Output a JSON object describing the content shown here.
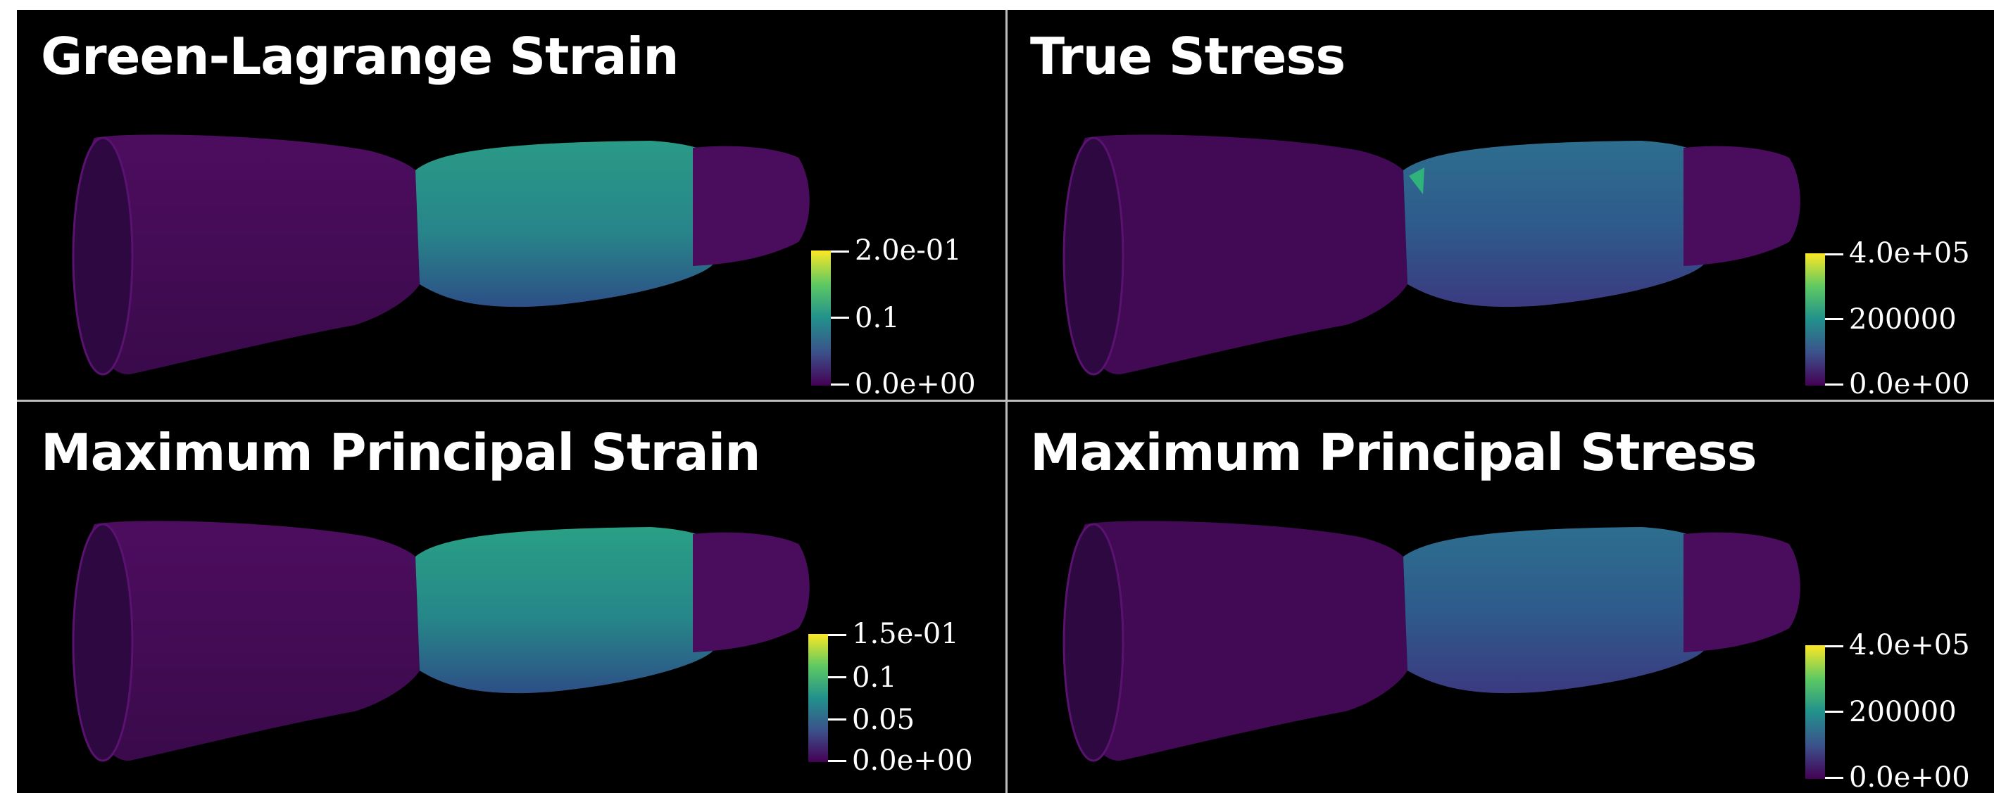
{
  "panels": [
    {
      "title": "Green-Lagrange Strain",
      "colorbar": {
        "labels": [
          "2.0e-01",
          "0.1",
          "0.0e+00"
        ],
        "range": [
          0,
          0.2
        ]
      },
      "mid_color": "#2a9a86"
    },
    {
      "title": "True Stress",
      "colorbar": {
        "labels": [
          "4.0e+05",
          "200000",
          "0.0e+00"
        ],
        "range": [
          0,
          400000
        ]
      },
      "mid_color": "#2b6f8e"
    },
    {
      "title": "Maximum Principal Strain",
      "colorbar": {
        "labels": [
          "1.5e-01",
          "0.1",
          "0.05",
          "0.0e+00"
        ],
        "range": [
          0,
          0.15
        ]
      },
      "mid_color": "#2a9a86"
    },
    {
      "title": "Maximum Principal Stress",
      "colorbar": {
        "labels": [
          "4.0e+05",
          "200000",
          "0.0e+00"
        ],
        "range": [
          0,
          400000
        ]
      },
      "mid_color": "#2b6f8e"
    }
  ],
  "colors": {
    "background": "#000000",
    "divider": "#bdbdbd",
    "low": "#440154",
    "colormap": "viridis"
  }
}
